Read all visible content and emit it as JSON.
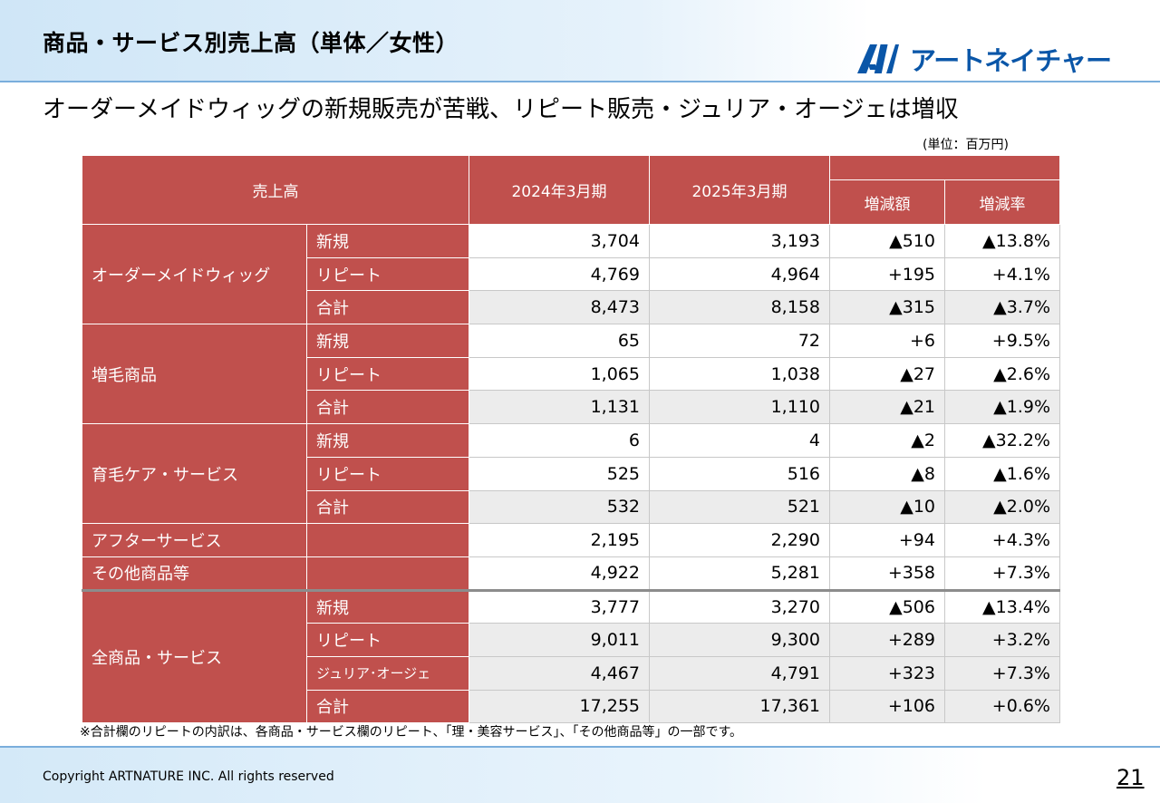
{
  "header": {
    "title": "商品・サービス別売上高（単体／女性）",
    "logo_text": "アートネイチャー",
    "logo_color": "#0a56a8"
  },
  "subtitle": "オーダーメイドウィッグの新規販売が苦戦、リピート販売・ジュリア・オージェは増収",
  "unit_note": "(単位：百万円)",
  "table": {
    "header": {
      "label": "売上高",
      "fy2024": "2024年3月期",
      "fy2025": "2025年3月期",
      "diff": "増減額",
      "rate": "増減率"
    },
    "rows": [
      {
        "category": "オーダーメイドウィッグ",
        "sub": "新規",
        "fy2024": "3,704",
        "fy2025": "3,193",
        "diff": "▲510",
        "rate": "▲13.8%"
      },
      {
        "sub": "リピート",
        "fy2024": "4,769",
        "fy2025": "4,964",
        "diff": "+195",
        "rate": "+4.1%"
      },
      {
        "sub": "合計",
        "fy2024": "8,473",
        "fy2025": "8,158",
        "diff": "▲315",
        "rate": "▲3.7%"
      },
      {
        "category": "増毛商品",
        "sub": "新規",
        "fy2024": "65",
        "fy2025": "72",
        "diff": "+6",
        "rate": "+9.5%"
      },
      {
        "sub": "リピート",
        "fy2024": "1,065",
        "fy2025": "1,038",
        "diff": "▲27",
        "rate": "▲2.6%"
      },
      {
        "sub": "合計",
        "fy2024": "1,131",
        "fy2025": "1,110",
        "diff": "▲21",
        "rate": "▲1.9%"
      },
      {
        "category": "育毛ケア・サービス",
        "sub": "新規",
        "fy2024": "6",
        "fy2025": "4",
        "diff": "▲2",
        "rate": "▲32.2%"
      },
      {
        "sub": "リピート",
        "fy2024": "525",
        "fy2025": "516",
        "diff": "▲8",
        "rate": "▲1.6%"
      },
      {
        "sub": "合計",
        "fy2024": "532",
        "fy2025": "521",
        "diff": "▲10",
        "rate": "▲2.0%"
      },
      {
        "category": "アフターサービス",
        "fy2024": "2,195",
        "fy2025": "2,290",
        "diff": "+94",
        "rate": "+4.3%"
      },
      {
        "category": "その他商品等",
        "fy2024": "4,922",
        "fy2025": "5,281",
        "diff": "+358",
        "rate": "+7.3%"
      },
      {
        "category": "全商品・サービス",
        "sub": "新規",
        "fy2024": "3,777",
        "fy2025": "3,270",
        "diff": "▲506",
        "rate": "▲13.4%"
      },
      {
        "sub": "リピート",
        "fy2024": "9,011",
        "fy2025": "9,300",
        "diff": "+289",
        "rate": "+3.2%"
      },
      {
        "sub": "ジュリア･オージェ",
        "fy2024": "4,467",
        "fy2025": "4,791",
        "diff": "+323",
        "rate": "+7.3%"
      },
      {
        "sub": "合計",
        "fy2024": "17,255",
        "fy2025": "17,361",
        "diff": "+106",
        "rate": "+0.6%"
      }
    ]
  },
  "footnote": "※合計欄のリピートの内訳は、各商品・サービス欄のリピート、「理・美容サービス」、「その他商品等」の一部です。",
  "footer": {
    "copyright": "Copyright ARTNATURE INC. All rights reserved",
    "page_number": "21"
  },
  "colors": {
    "table_header": "#c0504d",
    "alt_row": "#ececec",
    "header_band": "#cfe6f7"
  }
}
